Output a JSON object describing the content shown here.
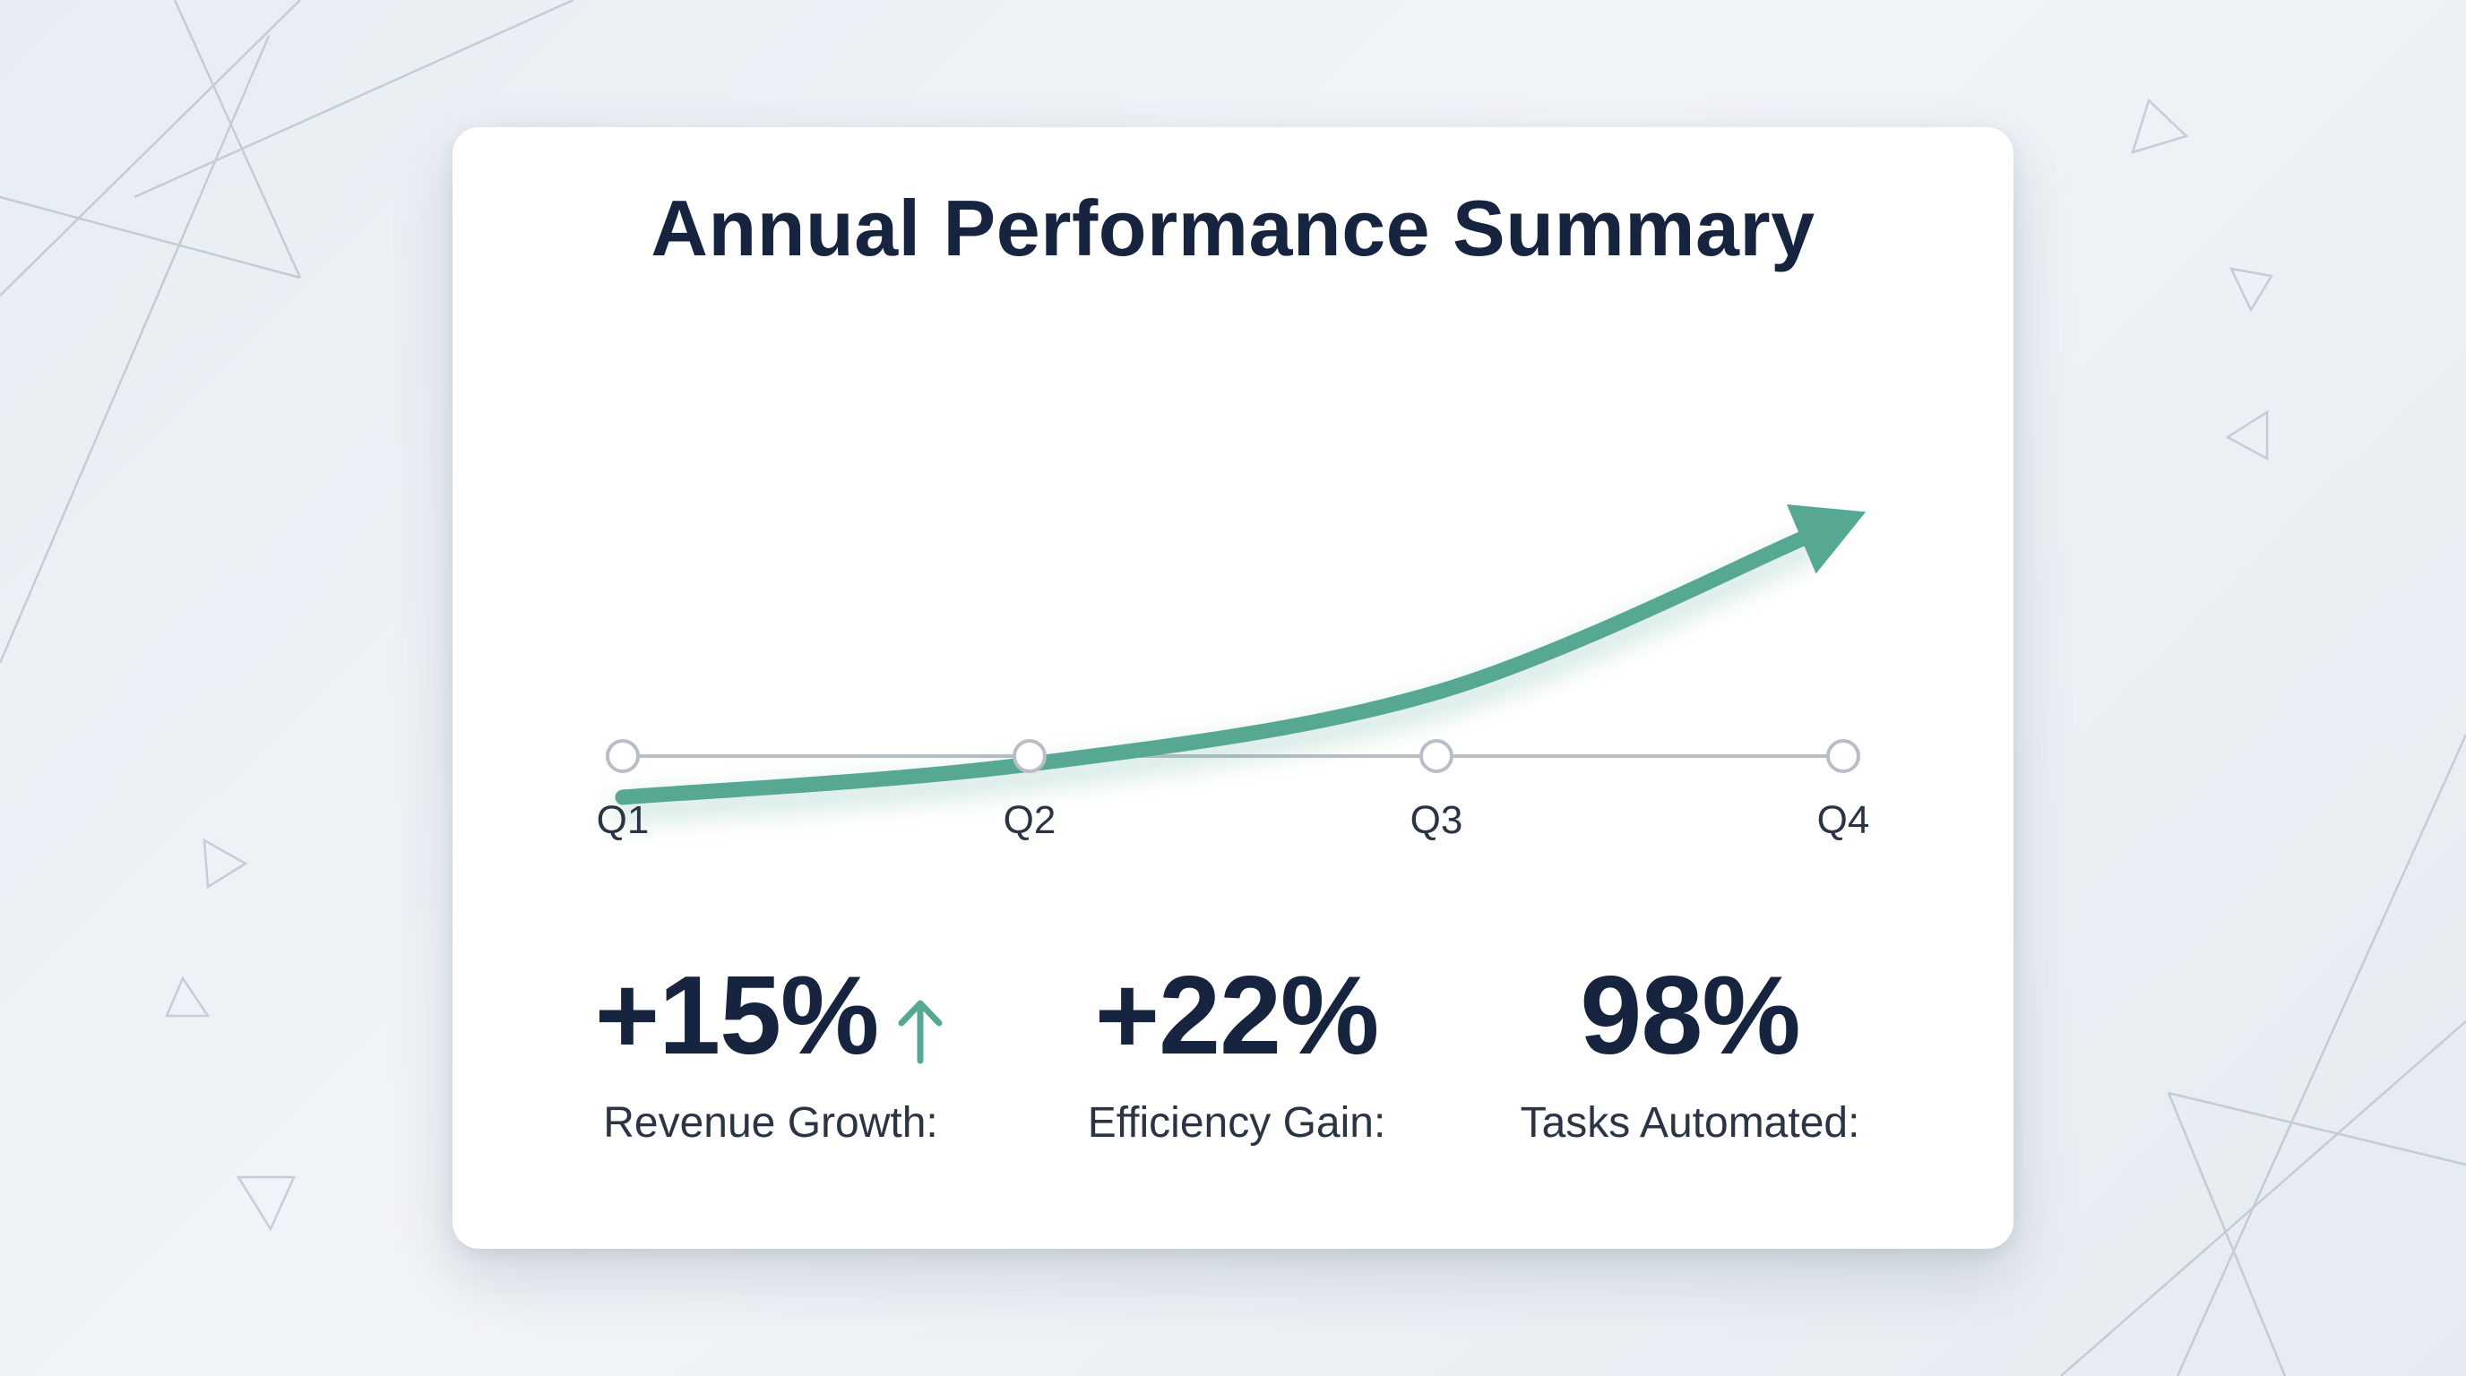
{
  "title": "Annual Performance Summary",
  "chart_data": {
    "type": "line",
    "title": "Annual Performance Summary",
    "categories": [
      "Q1",
      "Q2",
      "Q3",
      "Q4"
    ],
    "series": [
      {
        "values": [
          0,
          12,
          38,
          100
        ]
      }
    ],
    "ylim": [
      0,
      100
    ],
    "grid": false,
    "line_color": "#56a893",
    "arrow_end": true
  },
  "stats": [
    {
      "value": "+15%",
      "label": "Revenue Growth:",
      "trend_icon": "arrow-up-icon"
    },
    {
      "value": "+22%",
      "label": "Efficiency Gain:"
    },
    {
      "value": "98%",
      "label": "Tasks Automated:"
    }
  ],
  "colors": {
    "accent": "#56a893",
    "text_dark": "#17243f",
    "axis": "#b9bec6"
  }
}
